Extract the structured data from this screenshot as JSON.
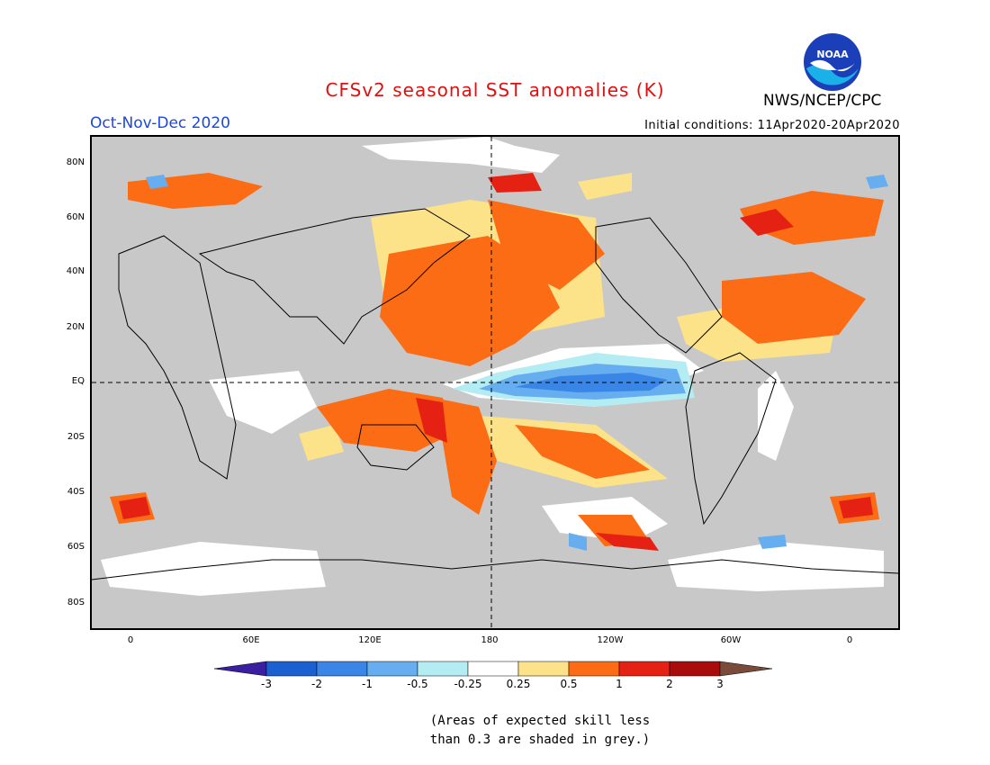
{
  "title": "CFSv2 seasonal SST anomalies (K)",
  "season": "Oct-Nov-Dec 2020",
  "initial_conditions": "Initial conditions: 11Apr2020-20Apr2020",
  "agency": "NWS/NCEP/CPC",
  "logo_text": "NOAA",
  "lat_labels": [
    "80N",
    "60N",
    "40N",
    "20N",
    "EQ",
    "20S",
    "40S",
    "60S",
    "80S"
  ],
  "lon_labels": [
    "0",
    "60E",
    "120E",
    "180",
    "120W",
    "60W",
    "0"
  ],
  "colorbar": {
    "labels": [
      "-3",
      "-2",
      "-1",
      "-0.5",
      "-0.25",
      "0.25",
      "0.5",
      "1",
      "2",
      "3"
    ],
    "colors": [
      "#3a1fa0",
      "#1c5fd0",
      "#3a86e6",
      "#66aef0",
      "#b4ecf4",
      "#ffffff",
      "#fce38a",
      "#fb6c14",
      "#e52113",
      "#a80c0c",
      "#7a4a3a"
    ]
  },
  "note_line1": "(Areas of expected skill less",
  "note_line2": "than 0.3 are shaded in grey.)"
}
